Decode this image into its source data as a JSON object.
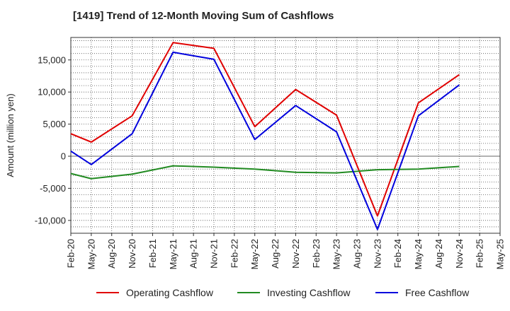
{
  "chart_data": {
    "type": "line",
    "title": "[1419]  Trend of 12-Month Moving Sum of Cashflows",
    "ylabel": "Amount (million yen)",
    "xlabel": "",
    "ylim": [
      -12000,
      18500
    ],
    "yticks": [
      -10000,
      -5000,
      0,
      5000,
      10000,
      15000
    ],
    "ytick_labels": [
      "-10,000",
      "-5,000",
      "0",
      "5,000",
      "10,000",
      "15,000"
    ],
    "categories": [
      "Feb-20",
      "May-20",
      "Aug-20",
      "Nov-20",
      "Feb-21",
      "May-21",
      "Aug-21",
      "Nov-21",
      "Feb-22",
      "May-22",
      "Aug-22",
      "Nov-22",
      "Feb-23",
      "May-23",
      "Aug-23",
      "Nov-23",
      "Feb-24",
      "May-24",
      "Aug-24",
      "Nov-24",
      "Feb-25",
      "May-25"
    ],
    "grid": true,
    "legend_position": "bottom",
    "series": [
      {
        "name": "Operating Cashflow",
        "color": "#e00000",
        "values": [
          3500,
          2200,
          null,
          6300,
          null,
          17700,
          null,
          16800,
          null,
          4600,
          null,
          10400,
          null,
          6400,
          null,
          -9300,
          null,
          8300,
          null,
          12700,
          null,
          null
        ]
      },
      {
        "name": "Investing Cashflow",
        "color": "#228b22",
        "values": [
          -2700,
          -3500,
          null,
          -2800,
          null,
          -1500,
          null,
          -1700,
          null,
          -2000,
          null,
          -2500,
          null,
          -2600,
          null,
          -2100,
          null,
          -2000,
          null,
          -1600,
          null,
          null
        ]
      },
      {
        "name": "Free Cashflow",
        "color": "#0000dd",
        "values": [
          800,
          -1300,
          null,
          3500,
          null,
          16200,
          null,
          15100,
          null,
          2600,
          null,
          7900,
          null,
          3800,
          null,
          -11400,
          null,
          6300,
          null,
          11100,
          null,
          null
        ]
      }
    ]
  }
}
